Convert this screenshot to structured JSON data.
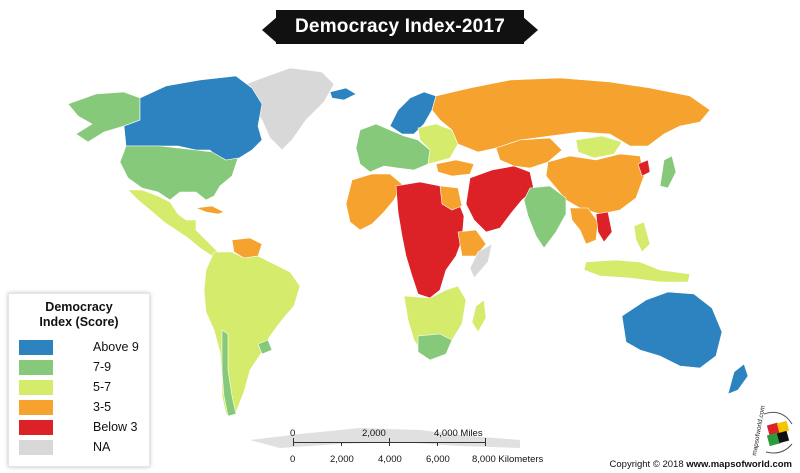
{
  "title": "Democracy Index-2017",
  "legend": {
    "title_line1": "Democracy",
    "title_line2": "Index (Score)",
    "items": [
      {
        "label": "Above 9",
        "color": "#2c83bf"
      },
      {
        "label": "7-9",
        "color": "#87c97a"
      },
      {
        "label": "5-7",
        "color": "#d4eb6b"
      },
      {
        "label": "3-5",
        "color": "#f5a22e"
      },
      {
        "label": "Below 3",
        "color": "#dc2127"
      },
      {
        "label": "NA",
        "color": "#d8d8d8"
      }
    ]
  },
  "scale": {
    "miles_ticks": [
      "0",
      "2,000",
      "4,000 Miles"
    ],
    "km_ticks": [
      "0",
      "2,000",
      "4,000",
      "6,000",
      "8,000 Kilometers"
    ]
  },
  "logo_text": "mapsofworld.com",
  "copyright": {
    "prefix": "Copyright © 2018",
    "site": "www.mapsofworld.com"
  },
  "colors": {
    "above_9": "#2c83bf",
    "score_7_9": "#87c97a",
    "score_5_7": "#d4eb6b",
    "score_3_5": "#f5a22e",
    "below_3": "#dc2127",
    "na": "#d8d8d8"
  }
}
